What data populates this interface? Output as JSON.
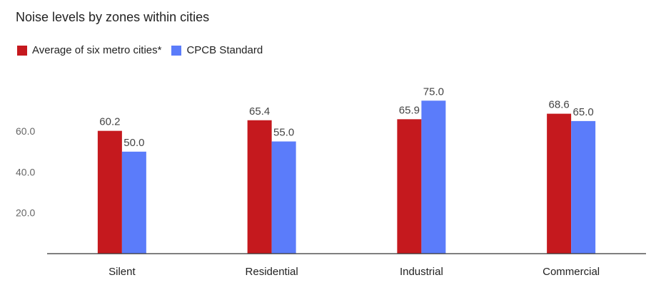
{
  "chart_data": {
    "type": "bar",
    "title": "Noise levels by zones within cities",
    "xlabel": "",
    "ylabel": "",
    "categories": [
      "Silent",
      "Residential",
      "Industrial",
      "Commercial"
    ],
    "series": [
      {
        "name": "Average of six metro cities*",
        "color": "#c5191e",
        "values": [
          60.2,
          65.4,
          65.9,
          68.6
        ],
        "labels": [
          "60.2",
          "65.4",
          "65.9",
          "68.6"
        ]
      },
      {
        "name": "CPCB Standard",
        "color": "#5b7cfa",
        "values": [
          50.0,
          55.0,
          75.0,
          65.0
        ],
        "labels": [
          "50.0",
          "55.0",
          "75.0",
          "65.0"
        ]
      }
    ],
    "ylim": [
      0,
      75
    ],
    "yticks": [
      20,
      40,
      60
    ],
    "ytick_labels": [
      "20.0",
      "40.0",
      "60.0"
    ],
    "legend": "top-left",
    "grid": false
  }
}
